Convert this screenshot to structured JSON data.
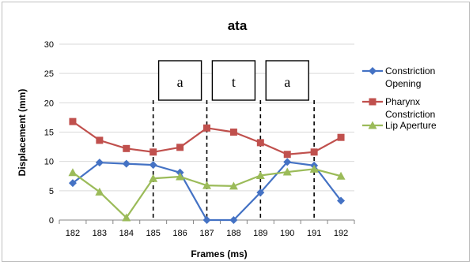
{
  "chart_data": {
    "type": "line",
    "title": "ata",
    "xlabel": "Frames (ms)",
    "ylabel": "Displacement (mm)",
    "categories": [
      "182",
      "183",
      "184",
      "185",
      "186",
      "187",
      "188",
      "189",
      "190",
      "191",
      "192"
    ],
    "ylim": [
      0,
      30
    ],
    "yticks": [
      0,
      5,
      10,
      15,
      20,
      25,
      30
    ],
    "grid": true,
    "legend_position": "right",
    "series": [
      {
        "name": "Constriction Opening",
        "color": "#4472C4",
        "marker": "diamond",
        "values": [
          6.3,
          9.8,
          9.6,
          9.4,
          8.1,
          0,
          0,
          4.7,
          9.9,
          9.3,
          3.3
        ]
      },
      {
        "name": "Pharynx Constriction",
        "color": "#C0504D",
        "marker": "square",
        "values": [
          16.8,
          13.6,
          12.2,
          11.6,
          12.4,
          15.7,
          15.0,
          13.2,
          11.2,
          11.6,
          14.1
        ]
      },
      {
        "name": "Lip Aperture",
        "color": "#9BBB59",
        "marker": "triangle",
        "values": [
          8.1,
          4.8,
          0.4,
          7.1,
          7.4,
          5.9,
          5.8,
          7.6,
          8.2,
          8.7,
          7.5
        ]
      }
    ],
    "boundaries": [
      "185",
      "187",
      "189",
      "191"
    ],
    "segments": [
      {
        "label": "a",
        "from": "185",
        "to": "187"
      },
      {
        "label": "t",
        "from": "187",
        "to": "189"
      },
      {
        "label": "a",
        "from": "189",
        "to": "191"
      }
    ]
  }
}
